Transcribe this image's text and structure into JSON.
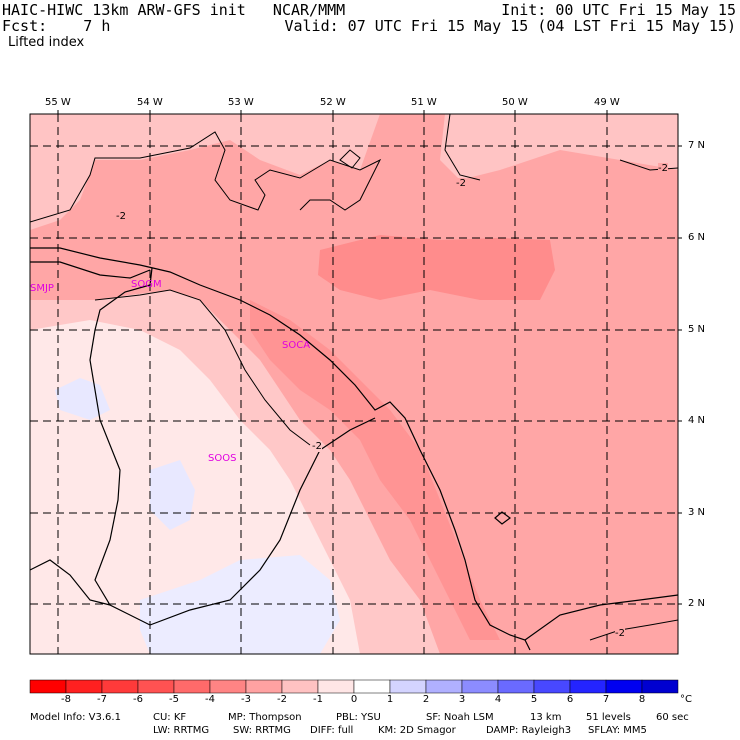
{
  "header": {
    "title": "HAIC-HIWC 13km ARW-GFS init   NCAR/MMM",
    "forecast": "Fcst:    7 h",
    "field": "Lifted index",
    "init": "Init: 00 UTC Fri 15 May 15",
    "valid": "Valid: 07 UTC Fri 15 May 15 (04 LST Fri 15 May 15)"
  },
  "lon_labels": [
    "55 W",
    "54 W",
    "53 W",
    "52 W",
    "51 W",
    "50 W",
    "49 W"
  ],
  "lat_labels": [
    "7 N",
    "6 N",
    "5 N",
    "4 N",
    "3 N",
    "2 N"
  ],
  "contour_labels": [
    "-2",
    "-2",
    "-2",
    "-2",
    "-2"
  ],
  "stations": [
    "SMJP",
    "SOGM",
    "SOCA",
    "SOOS"
  ],
  "colorbar": {
    "ticks": [
      "-8",
      "-7",
      "-6",
      "-5",
      "-4",
      "-3",
      "-2",
      "-1",
      "0",
      "1",
      "2",
      "3",
      "4",
      "5",
      "6",
      "7",
      "8"
    ],
    "unit": "°C",
    "colors": [
      "#ff0000",
      "#ff2020",
      "#ff3a3a",
      "#ff5252",
      "#ff6a6a",
      "#ff8484",
      "#ffa2a2",
      "#ffc2c2",
      "#ffe6e6",
      "#ffffff",
      "#d4d4ff",
      "#b0b0ff",
      "#8c8cff",
      "#6a6aff",
      "#4848ff",
      "#2424ff",
      "#0000f0",
      "#0000d0"
    ]
  },
  "footer": {
    "line1": [
      "Model Info: V3.6.1",
      "CU: KF",
      "MP: Thompson",
      "PBL: YSU",
      "SF: Noah LSM",
      "13 km",
      "51 levels",
      "60 sec"
    ],
    "line2": [
      "LW: RRTMG",
      "SW: RRTMG",
      "DIFF: full",
      "KM: 2D Smagor",
      "DAMP: Rayleigh3",
      "SFLAY: MM5"
    ]
  }
}
